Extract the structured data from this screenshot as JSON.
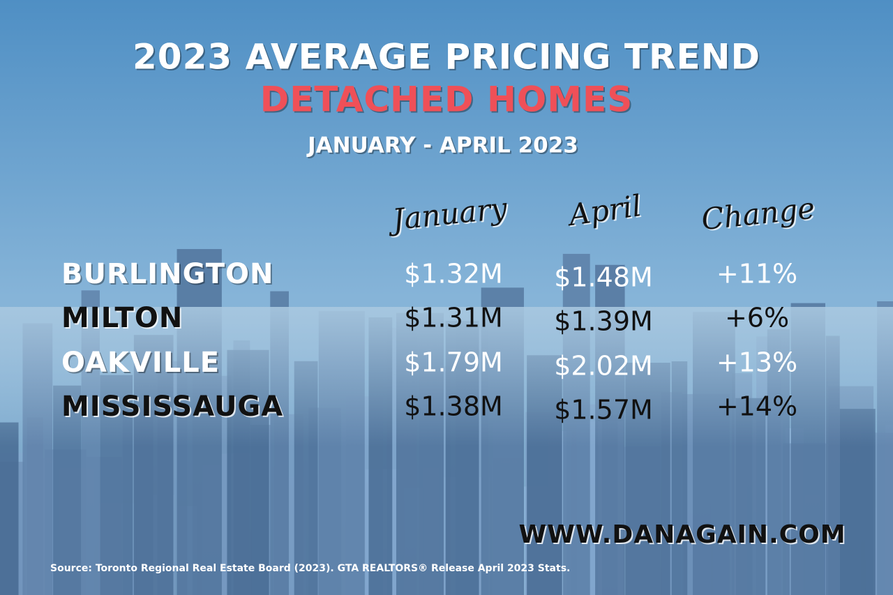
{
  "header": {
    "title": "2023 AVERAGE PRICING TREND",
    "subtitle": "DETACHED HOMES",
    "period": "JANUARY - APRIL 2023"
  },
  "table": {
    "columns": [
      "January",
      "April",
      "Change"
    ],
    "rows": [
      [
        "BURLINGTON",
        "$1.32M",
        "$1.48M",
        "+11%"
      ],
      [
        "MILTON",
        "$1.31M",
        "$1.39M",
        "+6%"
      ],
      [
        "OAKVILLE",
        "$1.79M",
        "$2.02M",
        "+13%"
      ],
      [
        "MISSISSAUGA",
        "$1.38M",
        "$1.57M",
        "+14%"
      ]
    ]
  },
  "footer": {
    "website": "WWW.DANAGAIN.COM",
    "source": "Source: Toronto Regional Real Estate Board (2023). GTA REALTORS® Release April 2023 Stats."
  }
}
